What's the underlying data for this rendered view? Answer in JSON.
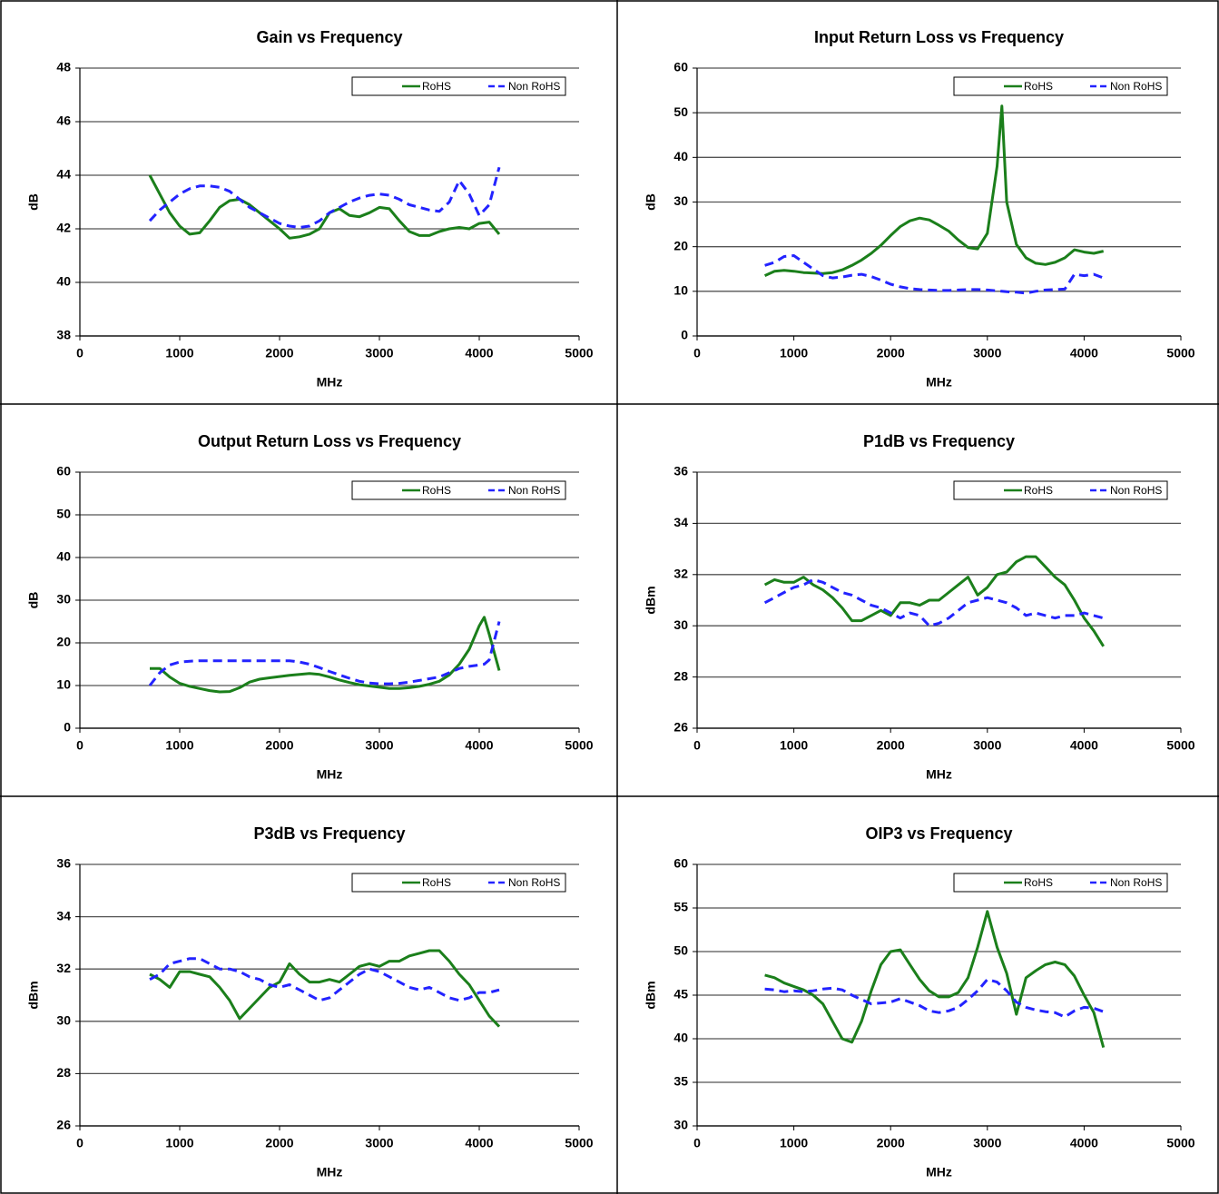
{
  "chart_data": [
    {
      "type": "line",
      "title": "Gain vs Frequency",
      "xlabel": "MHz",
      "ylabel": "dB",
      "legend": "upper right",
      "grid": true,
      "x": [
        700,
        800,
        900,
        1000,
        1100,
        1200,
        1300,
        1400,
        1500,
        1600,
        1700,
        1800,
        1900,
        2000,
        2100,
        2200,
        2300,
        2400,
        2500,
        2600,
        2700,
        2800,
        2900,
        3000,
        3100,
        3200,
        3300,
        3400,
        3500,
        3600,
        3700,
        3800,
        3900,
        4000,
        4100,
        4200
      ],
      "series": [
        {
          "name": "RoHS",
          "color": "#1b7f1b",
          "values": [
            44.0,
            43.3,
            42.6,
            42.1,
            41.8,
            41.85,
            42.3,
            42.8,
            43.05,
            43.1,
            42.9,
            42.6,
            42.3,
            42.0,
            41.65,
            41.7,
            41.8,
            42.0,
            42.6,
            42.75,
            42.5,
            42.45,
            42.6,
            42.8,
            42.75,
            42.3,
            41.9,
            41.75,
            41.75,
            41.9,
            42.0,
            42.05,
            42.0,
            42.2,
            42.25,
            41.8
          ]
        },
        {
          "name": "Non RoHS",
          "color": "#2323ff",
          "values": [
            42.3,
            42.7,
            43.0,
            43.3,
            43.5,
            43.6,
            43.6,
            43.55,
            43.4,
            43.1,
            42.8,
            42.6,
            42.4,
            42.2,
            42.1,
            42.05,
            42.1,
            42.3,
            42.6,
            42.8,
            43.0,
            43.15,
            43.25,
            43.3,
            43.25,
            43.1,
            42.9,
            42.8,
            42.7,
            42.65,
            43.0,
            43.8,
            43.3,
            42.5,
            42.9,
            44.3
          ]
        }
      ],
      "xlim": [
        0,
        5000
      ],
      "xticks": [
        0,
        1000,
        2000,
        3000,
        4000,
        5000
      ],
      "ylim": [
        38,
        48
      ],
      "yticks": [
        38,
        40,
        42,
        44,
        46,
        48
      ]
    },
    {
      "type": "line",
      "title": "Input Return Loss vs Frequency",
      "xlabel": "MHz",
      "ylabel": "dB",
      "legend": "upper right",
      "grid": true,
      "x": [
        700,
        800,
        900,
        1000,
        1100,
        1200,
        1300,
        1400,
        1500,
        1600,
        1700,
        1800,
        1900,
        2000,
        2100,
        2200,
        2300,
        2400,
        2500,
        2600,
        2700,
        2800,
        2900,
        3000,
        3100,
        3150,
        3200,
        3300,
        3400,
        3500,
        3600,
        3700,
        3800,
        3900,
        4000,
        4100,
        4200
      ],
      "series": [
        {
          "name": "RoHS",
          "color": "#1b7f1b",
          "values": [
            13.5,
            14.5,
            14.7,
            14.5,
            14.2,
            14.1,
            14.0,
            14.2,
            14.8,
            15.8,
            17.0,
            18.5,
            20.3,
            22.5,
            24.5,
            25.8,
            26.4,
            26.0,
            24.8,
            23.5,
            21.5,
            19.8,
            19.5,
            23.0,
            38,
            51.5,
            30,
            20.5,
            17.5,
            16.3,
            16.0,
            16.5,
            17.5,
            19.3,
            18.8,
            18.5,
            19.0
          ]
        },
        {
          "name": "Non RoHS",
          "color": "#2323ff",
          "values": [
            15.8,
            16.5,
            17.8,
            18.0,
            16.5,
            15.0,
            13.5,
            13.0,
            13.2,
            13.6,
            13.8,
            13.3,
            12.5,
            11.6,
            11.0,
            10.6,
            10.4,
            10.3,
            10.2,
            10.2,
            10.3,
            10.4,
            10.4,
            10.3,
            10.1,
            10.0,
            9.9,
            9.8,
            9.6,
            10.0,
            10.3,
            10.4,
            10.5,
            13.8,
            13.5,
            13.8,
            13.0
          ]
        }
      ],
      "xlim": [
        0,
        5000
      ],
      "xticks": [
        0,
        1000,
        2000,
        3000,
        4000,
        5000
      ],
      "ylim": [
        0,
        60
      ],
      "yticks": [
        0,
        10,
        20,
        30,
        40,
        50,
        60
      ]
    },
    {
      "type": "line",
      "title": "Output Return Loss vs Frequency",
      "xlabel": "MHz",
      "ylabel": "dB",
      "legend": "upper right",
      "grid": true,
      "x": [
        700,
        800,
        900,
        1000,
        1100,
        1200,
        1300,
        1400,
        1500,
        1600,
        1700,
        1800,
        1900,
        2000,
        2100,
        2200,
        2300,
        2400,
        2500,
        2600,
        2700,
        2800,
        2900,
        3000,
        3100,
        3200,
        3300,
        3400,
        3500,
        3600,
        3700,
        3800,
        3900,
        4000,
        4050,
        4100,
        4200
      ],
      "series": [
        {
          "name": "RoHS",
          "color": "#1b7f1b",
          "values": [
            14.0,
            14.0,
            12.0,
            10.5,
            9.8,
            9.3,
            8.8,
            8.5,
            8.6,
            9.5,
            10.8,
            11.5,
            11.8,
            12.1,
            12.4,
            12.6,
            12.8,
            12.6,
            12.0,
            11.3,
            10.7,
            10.2,
            9.9,
            9.6,
            9.3,
            9.3,
            9.5,
            9.8,
            10.3,
            11.0,
            12.5,
            15.0,
            18.5,
            24.0,
            26.0,
            22.0,
            13.5
          ]
        },
        {
          "name": "Non RoHS",
          "color": "#2323ff",
          "values": [
            10.0,
            13.0,
            14.8,
            15.5,
            15.7,
            15.8,
            15.8,
            15.8,
            15.8,
            15.8,
            15.8,
            15.8,
            15.8,
            15.8,
            15.8,
            15.5,
            15.0,
            14.2,
            13.3,
            12.5,
            11.7,
            11.0,
            10.6,
            10.4,
            10.4,
            10.5,
            10.8,
            11.2,
            11.6,
            12.0,
            13.0,
            14.0,
            14.5,
            14.8,
            15.0,
            16.0,
            25.0
          ]
        }
      ],
      "xlim": [
        0,
        5000
      ],
      "xticks": [
        0,
        1000,
        2000,
        3000,
        4000,
        5000
      ],
      "ylim": [
        0,
        60
      ],
      "yticks": [
        0,
        10,
        20,
        30,
        40,
        50,
        60
      ]
    },
    {
      "type": "line",
      "title": "P1dB vs Frequency",
      "xlabel": "MHz",
      "ylabel": "dBm",
      "legend": "upper right",
      "grid": true,
      "x": [
        700,
        800,
        900,
        1000,
        1100,
        1200,
        1300,
        1400,
        1500,
        1600,
        1700,
        1800,
        1900,
        2000,
        2100,
        2200,
        2300,
        2400,
        2500,
        2600,
        2700,
        2800,
        2900,
        3000,
        3100,
        3200,
        3300,
        3400,
        3500,
        3600,
        3700,
        3800,
        3900,
        4000,
        4100,
        4200
      ],
      "series": [
        {
          "name": "RoHS",
          "color": "#1b7f1b",
          "values": [
            31.6,
            31.8,
            31.7,
            31.7,
            31.9,
            31.6,
            31.4,
            31.1,
            30.7,
            30.2,
            30.2,
            30.4,
            30.6,
            30.4,
            30.9,
            30.9,
            30.8,
            31.0,
            31.0,
            31.3,
            31.6,
            31.9,
            31.2,
            31.5,
            32.0,
            32.1,
            32.5,
            32.7,
            32.7,
            32.3,
            31.9,
            31.6,
            31.0,
            30.3,
            29.8,
            29.2
          ]
        },
        {
          "name": "Non RoHS",
          "color": "#2323ff",
          "values": [
            30.9,
            31.1,
            31.3,
            31.5,
            31.6,
            31.8,
            31.7,
            31.5,
            31.3,
            31.2,
            31.0,
            30.8,
            30.7,
            30.5,
            30.3,
            30.5,
            30.4,
            30.0,
            30.1,
            30.3,
            30.6,
            30.9,
            31.0,
            31.1,
            31.0,
            30.9,
            30.7,
            30.4,
            30.5,
            30.4,
            30.3,
            30.4,
            30.4,
            30.5,
            30.4,
            30.3
          ]
        }
      ],
      "xlim": [
        0,
        5000
      ],
      "xticks": [
        0,
        1000,
        2000,
        3000,
        4000,
        5000
      ],
      "ylim": [
        26,
        36
      ],
      "yticks": [
        26,
        28,
        30,
        32,
        34,
        36
      ]
    },
    {
      "type": "line",
      "title": "P3dB vs Frequency",
      "xlabel": "MHz",
      "ylabel": "dBm",
      "legend": "upper right",
      "grid": true,
      "x": [
        700,
        800,
        900,
        1000,
        1100,
        1200,
        1300,
        1400,
        1500,
        1600,
        1700,
        1800,
        1900,
        2000,
        2100,
        2200,
        2300,
        2400,
        2500,
        2600,
        2700,
        2800,
        2900,
        3000,
        3100,
        3200,
        3300,
        3400,
        3500,
        3600,
        3700,
        3800,
        3900,
        4000,
        4100,
        4200
      ],
      "series": [
        {
          "name": "RoHS",
          "color": "#1b7f1b",
          "values": [
            31.8,
            31.6,
            31.3,
            31.9,
            31.9,
            31.8,
            31.7,
            31.3,
            30.8,
            30.1,
            30.5,
            30.9,
            31.3,
            31.5,
            32.2,
            31.8,
            31.5,
            31.5,
            31.6,
            31.5,
            31.8,
            32.1,
            32.2,
            32.1,
            32.3,
            32.3,
            32.5,
            32.6,
            32.7,
            32.7,
            32.3,
            31.8,
            31.4,
            30.8,
            30.2,
            29.8
          ]
        },
        {
          "name": "Non RoHS",
          "color": "#2323ff",
          "values": [
            31.6,
            31.8,
            32.2,
            32.3,
            32.4,
            32.4,
            32.2,
            32.0,
            32.0,
            31.9,
            31.7,
            31.6,
            31.4,
            31.3,
            31.4,
            31.2,
            31.0,
            30.8,
            30.9,
            31.2,
            31.5,
            31.8,
            32.0,
            31.9,
            31.7,
            31.5,
            31.3,
            31.2,
            31.3,
            31.1,
            30.9,
            30.8,
            30.9,
            31.1,
            31.1,
            31.2
          ]
        }
      ],
      "xlim": [
        0,
        5000
      ],
      "xticks": [
        0,
        1000,
        2000,
        3000,
        4000,
        5000
      ],
      "ylim": [
        26,
        36
      ],
      "yticks": [
        26,
        28,
        30,
        32,
        34,
        36
      ]
    },
    {
      "type": "line",
      "title": "OIP3 vs Frequency",
      "xlabel": "MHz",
      "ylabel": "dBm",
      "legend": "upper right",
      "grid": true,
      "x": [
        700,
        800,
        900,
        1000,
        1100,
        1200,
        1300,
        1400,
        1500,
        1600,
        1700,
        1800,
        1900,
        2000,
        2100,
        2200,
        2300,
        2400,
        2500,
        2600,
        2700,
        2800,
        2900,
        3000,
        3100,
        3200,
        3300,
        3400,
        3500,
        3600,
        3700,
        3800,
        3900,
        4000,
        4100,
        4200
      ],
      "series": [
        {
          "name": "RoHS",
          "color": "#1b7f1b",
          "values": [
            47.3,
            47.0,
            46.4,
            46.0,
            45.6,
            45.0,
            44.0,
            42.0,
            40.0,
            39.6,
            42.0,
            45.5,
            48.5,
            50.0,
            50.2,
            48.5,
            46.8,
            45.5,
            44.8,
            44.8,
            45.3,
            47.0,
            50.5,
            54.6,
            50.5,
            47.5,
            42.8,
            47.0,
            47.8,
            48.5,
            48.8,
            48.5,
            47.2,
            45.0,
            43.0,
            39.0
          ]
        },
        {
          "name": "Non RoHS",
          "color": "#2323ff",
          "values": [
            45.7,
            45.6,
            45.4,
            45.5,
            45.4,
            45.5,
            45.7,
            45.8,
            45.6,
            45.0,
            44.5,
            44.0,
            44.1,
            44.2,
            44.6,
            44.2,
            43.8,
            43.2,
            43.0,
            43.2,
            43.6,
            44.5,
            45.5,
            46.8,
            46.5,
            45.5,
            44.2,
            43.6,
            43.3,
            43.1,
            43.0,
            42.5,
            43.2,
            43.6,
            43.5,
            43.1
          ]
        }
      ],
      "xlim": [
        0,
        5000
      ],
      "xticks": [
        0,
        1000,
        2000,
        3000,
        4000,
        5000
      ],
      "ylim": [
        30,
        60
      ],
      "yticks": [
        30,
        35,
        40,
        45,
        50,
        55,
        60
      ]
    }
  ]
}
